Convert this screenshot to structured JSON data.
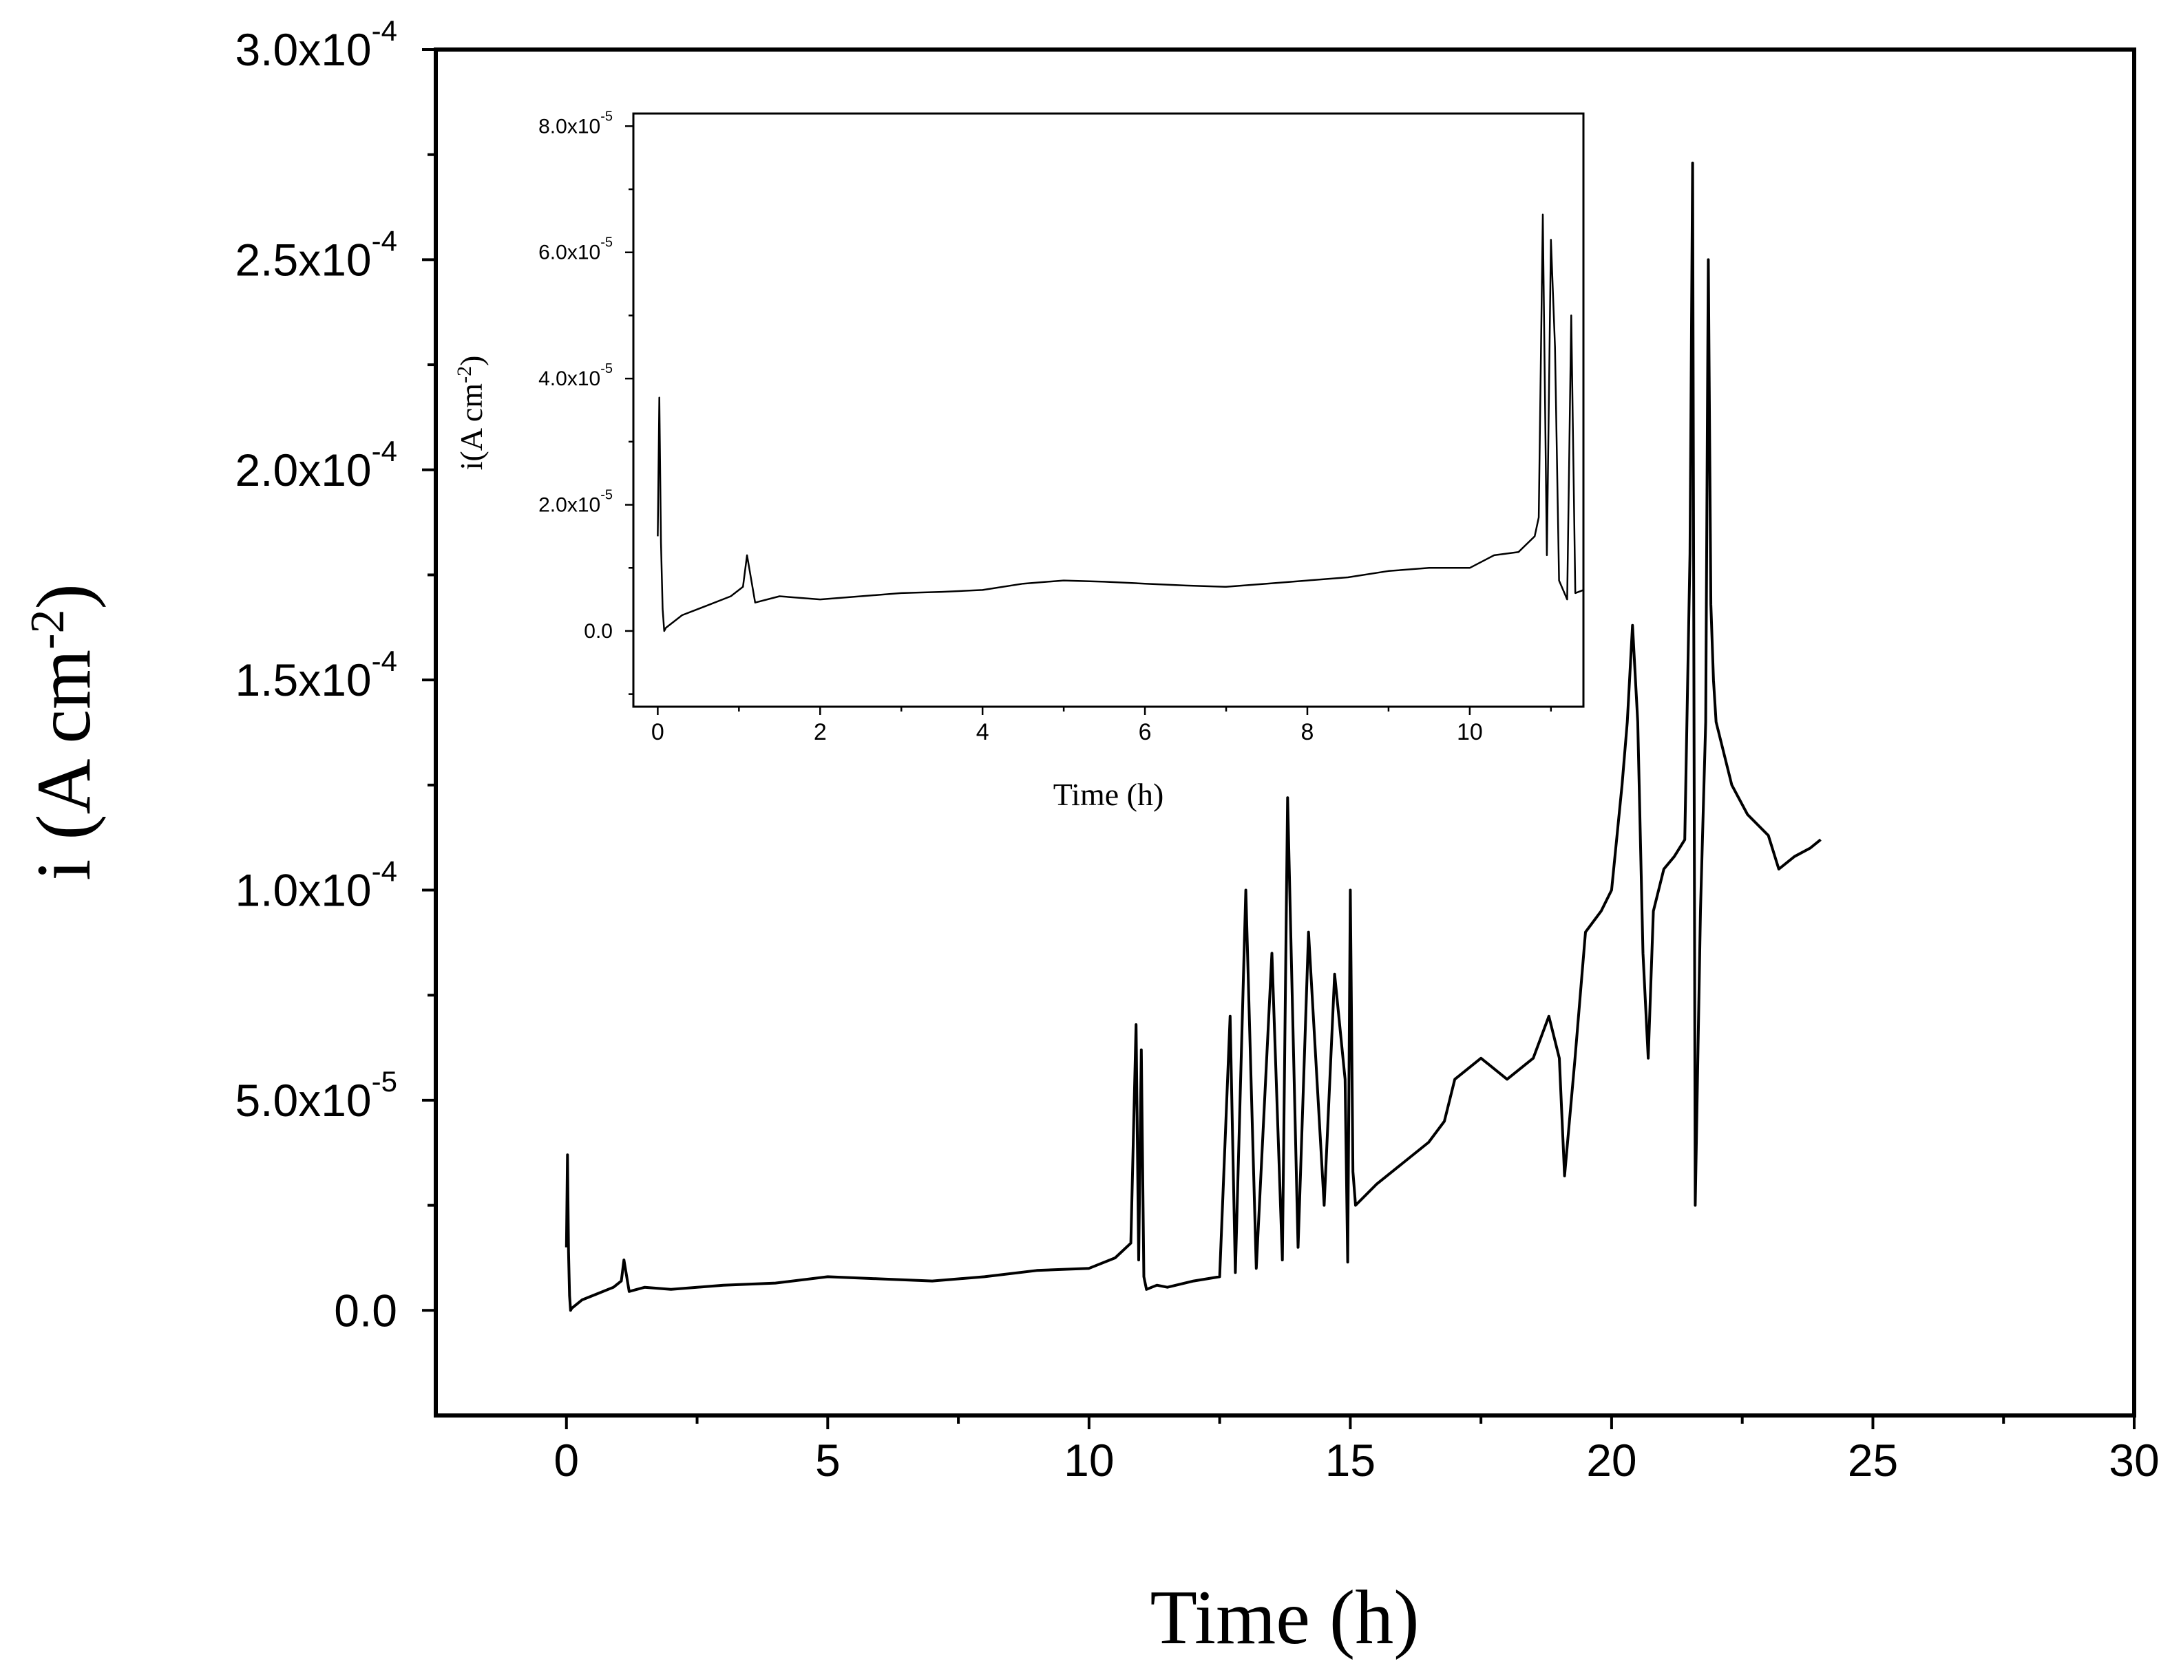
{
  "chart_data": [
    {
      "type": "line",
      "panel": "main",
      "title": "",
      "xlabel": "Time (h)",
      "ylabel": {
        "base": "i (A cm",
        "sup": "-2",
        "tail": ")"
      },
      "xlim": [
        -2.5,
        30
      ],
      "ylim": [
        -2.5e-05,
        0.0003
      ],
      "x_ticks": [
        0,
        5,
        10,
        15,
        20,
        25,
        30
      ],
      "x_tick_labels": [
        "0",
        "5",
        "10",
        "15",
        "20",
        "25",
        "30"
      ],
      "y_ticks": [
        0,
        5e-05,
        0.0001,
        0.00015,
        0.0002,
        0.00025,
        0.0003
      ],
      "y_tick_labels": [
        {
          "mant": "0.0",
          "exp": ""
        },
        {
          "mant": "5.0x10",
          "exp": "-5"
        },
        {
          "mant": "1.0x10",
          "exp": "-4"
        },
        {
          "mant": "1.5x10",
          "exp": "-4"
        },
        {
          "mant": "2.0x10",
          "exp": "-4"
        },
        {
          "mant": "2.5x10",
          "exp": "-4"
        },
        {
          "mant": "3.0x10",
          "exp": "-4"
        }
      ],
      "grid": false,
      "line_color": "#000000",
      "series": [
        {
          "x": [
            0.0,
            0.02,
            0.04,
            0.06,
            0.08,
            0.1,
            0.3,
            0.6,
            0.9,
            1.05,
            1.1,
            1.2,
            1.5,
            2.0,
            3.0,
            4.0,
            5.0,
            6.0,
            7.0,
            8.0,
            9.0,
            10.0,
            10.5,
            10.8,
            10.9,
            10.95,
            11.0,
            11.05,
            11.1,
            11.2,
            11.3,
            11.5,
            12.0,
            12.5,
            12.7,
            12.8,
            13.0,
            13.2,
            13.5,
            13.7,
            13.8,
            14.0,
            14.2,
            14.5,
            14.7,
            14.9,
            14.95,
            15.0,
            15.05,
            15.1,
            15.5,
            16.0,
            16.5,
            16.8,
            17.0,
            17.5,
            18.0,
            18.5,
            18.8,
            19.0,
            19.1,
            19.3,
            19.5,
            19.8,
            20.0,
            20.2,
            20.3,
            20.4,
            20.5,
            20.6,
            20.7,
            20.8,
            21.0,
            21.2,
            21.4,
            21.5,
            21.55,
            21.6,
            21.7,
            21.8,
            21.85,
            21.9,
            21.95,
            22.0,
            22.3,
            22.6,
            23.0,
            23.2,
            23.5,
            23.8,
            24.0
          ],
          "y": [
            1.5e-05,
            3.7e-05,
            1.4e-05,
            3.5e-06,
            0.0,
            5e-07,
            2.5e-06,
            4e-06,
            5.5e-06,
            7e-06,
            1.2e-05,
            4.5e-06,
            5.5e-06,
            5e-06,
            6e-06,
            6.5e-06,
            8e-06,
            7.5e-06,
            7e-06,
            8e-06,
            9.5e-06,
            1e-05,
            1.25e-05,
            1.6e-05,
            6.8e-05,
            1.2e-05,
            6.2e-05,
            8e-06,
            5e-06,
            5.5e-06,
            6e-06,
            5.5e-06,
            7e-06,
            8e-06,
            7e-05,
            9e-06,
            0.0001,
            1e-05,
            8.5e-05,
            1.2e-05,
            0.000122,
            1.5e-05,
            9e-05,
            2.5e-05,
            8e-05,
            5.5e-05,
            1.15e-05,
            0.0001,
            3.3e-05,
            2.5e-05,
            3e-05,
            3.5e-05,
            4e-05,
            4.5e-05,
            5.5e-05,
            6e-05,
            5.5e-05,
            6e-05,
            7e-05,
            6e-05,
            3.2e-05,
            6e-05,
            9e-05,
            9.5e-05,
            0.0001,
            0.000125,
            0.00014,
            0.000163,
            0.00014,
            8.5e-05,
            6e-05,
            9.5e-05,
            0.000105,
            0.000108,
            0.000112,
            0.00018,
            0.000273,
            2.5e-05,
            9.5e-05,
            0.00014,
            0.00025,
            0.000168,
            0.00015,
            0.00014,
            0.000125,
            0.000118,
            0.000113,
            0.000105,
            0.000108,
            0.00011,
            0.000112
          ]
        }
      ]
    },
    {
      "type": "line",
      "panel": "inset",
      "title": "",
      "xlabel": "Time (h)",
      "ylabel": {
        "base": "i(A cm",
        "sup": "-2",
        "tail": ")"
      },
      "xlim": [
        -0.3,
        11.4
      ],
      "ylim": [
        -1.2e-05,
        8.2e-05
      ],
      "x_ticks": [
        0,
        2,
        4,
        6,
        8,
        10
      ],
      "x_tick_labels": [
        "0",
        "2",
        "4",
        "6",
        "8",
        "10"
      ],
      "y_ticks": [
        0,
        2e-05,
        4e-05,
        6e-05,
        8e-05
      ],
      "y_tick_labels": [
        {
          "mant": "0.0",
          "exp": ""
        },
        {
          "mant": "2.0x10",
          "exp": "-5"
        },
        {
          "mant": "4.0x10",
          "exp": "-5"
        },
        {
          "mant": "6.0x10",
          "exp": "-5"
        },
        {
          "mant": "8.0x10",
          "exp": "-5"
        }
      ],
      "grid": false,
      "line_color": "#000000",
      "series": [
        {
          "x": [
            0.0,
            0.02,
            0.04,
            0.06,
            0.08,
            0.1,
            0.3,
            0.6,
            0.9,
            1.05,
            1.1,
            1.2,
            1.5,
            2.0,
            2.5,
            3.0,
            3.5,
            4.0,
            4.5,
            5.0,
            5.5,
            6.0,
            6.5,
            7.0,
            7.5,
            8.0,
            8.5,
            9.0,
            9.5,
            10.0,
            10.3,
            10.6,
            10.8,
            10.85,
            10.9,
            10.95,
            11.0,
            11.05,
            11.1,
            11.2,
            11.25,
            11.3,
            11.4
          ],
          "y": [
            1.5e-05,
            3.7e-05,
            1.4e-05,
            3.5e-06,
            0.0,
            5e-07,
            2.5e-06,
            4e-06,
            5.5e-06,
            7e-06,
            1.2e-05,
            4.5e-06,
            5.5e-06,
            5e-06,
            5.5e-06,
            6e-06,
            6.2e-06,
            6.5e-06,
            7.5e-06,
            8e-06,
            7.8e-06,
            7.5e-06,
            7.2e-06,
            7e-06,
            7.5e-06,
            8e-06,
            8.5e-06,
            9.5e-06,
            1e-05,
            1e-05,
            1.2e-05,
            1.25e-05,
            1.5e-05,
            1.8e-05,
            6.6e-05,
            1.2e-05,
            6.2e-05,
            4.5e-05,
            8e-06,
            5e-06,
            5e-05,
            6e-06,
            6.5e-06
          ]
        }
      ]
    }
  ]
}
